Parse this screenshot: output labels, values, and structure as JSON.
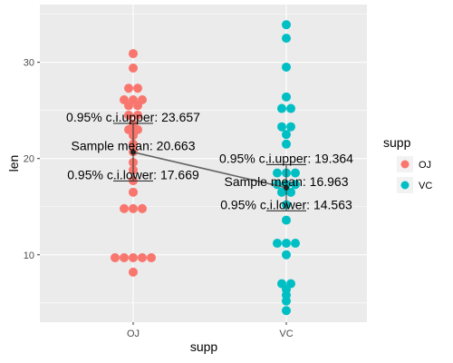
{
  "chart_data": {
    "type": "scatter",
    "subtype": "dotplot",
    "xlabel": "supp",
    "ylabel": "len",
    "categories": [
      "OJ",
      "VC"
    ],
    "ylim": [
      3,
      36
    ],
    "yticks": [
      10,
      20,
      30
    ],
    "grid": true,
    "legend": {
      "title": "supp",
      "position": "right",
      "entries": [
        {
          "label": "OJ",
          "color": "#F8766D"
        },
        {
          "label": "VC",
          "color": "#00BFC4"
        }
      ]
    },
    "series": [
      {
        "name": "OJ",
        "color": "#F8766D",
        "values": [
          8.2,
          9.7,
          9.7,
          9.7,
          9.7,
          9.7,
          14.8,
          14.8,
          14.8,
          16.5,
          17.7,
          18.8,
          19.6,
          20.7,
          21.5,
          22.4,
          23.0,
          23.3,
          23.6,
          24.5,
          24.8,
          25.5,
          25.8,
          26.1,
          26.2,
          26.4,
          27.3,
          27.3,
          29.4,
          30.9
        ]
      },
      {
        "name": "VC",
        "color": "#00BFC4",
        "values": [
          4.2,
          5.2,
          5.8,
          6.4,
          7.0,
          7.0,
          10.0,
          11.2,
          11.2,
          11.5,
          13.6,
          15.2,
          16.5,
          16.5,
          17.3,
          17.3,
          17.6,
          18.5,
          18.8,
          18.8,
          21.5,
          22.5,
          23.3,
          23.6,
          25.2,
          25.5,
          26.4,
          29.5,
          32.5,
          33.9
        ]
      }
    ],
    "summary": [
      {
        "group": "OJ",
        "mean": 20.663,
        "lower": 17.669,
        "upper": 23.657
      },
      {
        "group": "VC",
        "mean": 16.963,
        "lower": 14.563,
        "upper": 19.364
      }
    ],
    "annotations": {
      "OJ": {
        "upper": "0.95% c.i.upper: 23.657",
        "mean": "Sample mean: 20.663",
        "lower": "0.95% c.i.lower: 17.669"
      },
      "VC": {
        "upper": "0.95% c.i.upper: 19.364",
        "mean": "Sample mean: 16.963",
        "lower": "0.95% c.i.lower: 14.563"
      }
    }
  }
}
